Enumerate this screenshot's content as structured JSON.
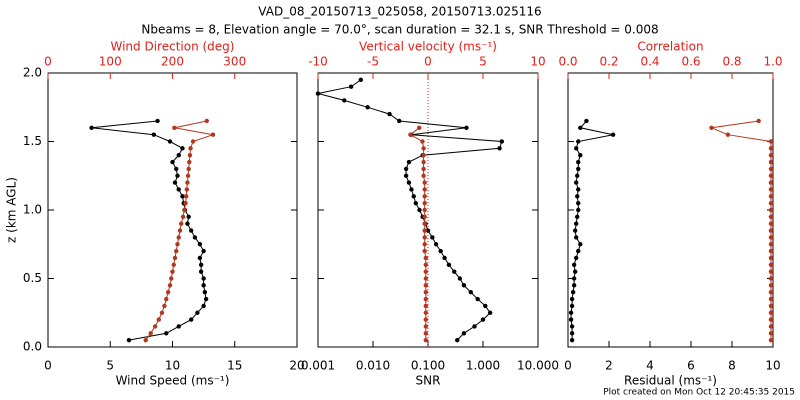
{
  "header": {
    "title": "VAD_08_20150713_025058, 20150713.025116",
    "subtitle": "Nbeams = 8, Elevation angle = 70.0°, scan duration = 32.1 s, SNR Threshold = 0.008",
    "footer": "Plot created on Mon Oct 12 20:45:35 2015"
  },
  "chart_data": [
    {
      "type": "line",
      "ylabel": "z (km AGL)",
      "ytick_labels": true,
      "ylim": [
        0,
        2
      ],
      "yticks": [
        {
          "value": 0,
          "label": "0.0"
        },
        {
          "value": 0.5,
          "label": "0.5"
        },
        {
          "value": 1,
          "label": "1.0"
        },
        {
          "value": 1.5,
          "label": "1.5"
        },
        {
          "value": 2,
          "label": "2.0"
        }
      ],
      "y": [
        0.05,
        0.1,
        0.15,
        0.2,
        0.25,
        0.3,
        0.35,
        0.4,
        0.45,
        0.5,
        0.55,
        0.6,
        0.65,
        0.7,
        0.75,
        0.8,
        0.85,
        0.9,
        0.95,
        1.0,
        1.05,
        1.1,
        1.15,
        1.2,
        1.25,
        1.3,
        1.35,
        1.4,
        1.45,
        1.5,
        1.55,
        1.6,
        1.65,
        1.7,
        1.75,
        1.8,
        1.85,
        1.9,
        1.95
      ],
      "xlabel": "Wind Speed (ms⁻¹)",
      "xlim": [
        0,
        20
      ],
      "xticks": [
        0,
        5,
        10,
        15,
        20
      ],
      "x2label": "Wind Direction (deg)",
      "x2lim": [
        0,
        400
      ],
      "x2ticks": [
        0,
        100,
        200,
        300
      ],
      "series": [
        {
          "name": "Wind Speed",
          "color": "#000000",
          "axis": "x",
          "values": [
            6.5,
            9.5,
            10.5,
            11.5,
            12,
            12.5,
            12.7,
            12.6,
            12.5,
            12.5,
            12.3,
            12.3,
            12.2,
            12.5,
            12.2,
            11.8,
            11.5,
            11.2,
            11.3,
            11.0,
            10.9,
            10.8,
            10.5,
            10.2,
            10.4,
            10.3,
            10.0,
            10.5,
            10.8,
            9.8,
            8.5,
            3.5,
            8.8,
            null,
            null,
            null,
            null,
            null,
            null
          ]
        },
        {
          "name": "Wind Direction",
          "color": "#b5361e",
          "axis": "x2",
          "values": [
            157,
            165,
            172,
            178,
            183,
            187,
            190,
            193,
            196,
            198,
            200,
            202,
            204,
            206,
            208,
            210,
            212,
            214,
            217,
            219,
            221,
            222,
            223,
            224,
            225,
            226,
            227,
            228,
            229,
            233,
            265,
            203,
            255,
            null,
            null,
            null,
            null,
            null,
            null
          ]
        }
      ]
    },
    {
      "type": "line",
      "ytick_labels": false,
      "ylim": [
        0,
        2
      ],
      "yticks": [
        0,
        0.5,
        1,
        1.5,
        2
      ],
      "y": [
        0.05,
        0.1,
        0.15,
        0.2,
        0.25,
        0.3,
        0.35,
        0.4,
        0.45,
        0.5,
        0.55,
        0.6,
        0.65,
        0.7,
        0.75,
        0.8,
        0.85,
        0.9,
        0.95,
        1.0,
        1.05,
        1.1,
        1.15,
        1.2,
        1.25,
        1.3,
        1.35,
        1.4,
        1.45,
        1.5,
        1.55,
        1.6,
        1.65,
        1.7,
        1.75,
        1.8,
        1.85,
        1.9,
        1.95
      ],
      "xlabel": "SNR",
      "xscale": "log",
      "xlim": [
        0.001,
        10
      ],
      "xticks": [
        {
          "value": 0.001,
          "label": "0.001"
        },
        {
          "value": 0.01,
          "label": "0.010"
        },
        {
          "value": 0.1,
          "label": "0.100"
        },
        {
          "value": 1,
          "label": "1.000"
        },
        {
          "value": 10,
          "label": "10.000"
        }
      ],
      "x2label": "Vertical velocity (ms⁻¹)",
      "x2lim": [
        -10,
        10
      ],
      "x2ticks": [
        -10,
        -5,
        0,
        5,
        10
      ],
      "x2_refline": 0,
      "series": [
        {
          "name": "SNR",
          "color": "#000000",
          "axis": "x",
          "values": [
            0.34,
            0.45,
            0.7,
            1.0,
            1.35,
            1.1,
            0.8,
            0.6,
            0.45,
            0.38,
            0.3,
            0.24,
            0.2,
            0.17,
            0.14,
            0.12,
            0.1,
            0.09,
            0.08,
            0.07,
            0.06,
            0.055,
            0.05,
            0.045,
            0.04,
            0.04,
            0.045,
            0.08,
            2.0,
            2.2,
            0.05,
            0.5,
            0.03,
            0.02,
            0.008,
            0.003,
            0.001,
            0.004,
            0.006
          ]
        },
        {
          "name": "Vertical velocity",
          "color": "#b5361e",
          "axis": "x2",
          "values": [
            -0.2,
            -0.2,
            -0.2,
            -0.2,
            -0.2,
            -0.2,
            -0.2,
            -0.2,
            -0.2,
            -0.2,
            -0.2,
            -0.2,
            -0.2,
            -0.3,
            -0.3,
            -0.3,
            -0.3,
            -0.3,
            -0.3,
            -0.3,
            -0.3,
            -0.3,
            -0.3,
            -0.3,
            -0.4,
            -0.4,
            -0.4,
            -0.4,
            -0.4,
            -0.5,
            -1.6,
            -0.8,
            null,
            null,
            null,
            null,
            null,
            null,
            null
          ]
        }
      ]
    },
    {
      "type": "line",
      "ytick_labels": false,
      "ylim": [
        0,
        2
      ],
      "yticks": [
        0,
        0.5,
        1,
        1.5,
        2
      ],
      "y": [
        0.05,
        0.1,
        0.15,
        0.2,
        0.25,
        0.3,
        0.35,
        0.4,
        0.45,
        0.5,
        0.55,
        0.6,
        0.65,
        0.7,
        0.75,
        0.8,
        0.85,
        0.9,
        0.95,
        1.0,
        1.05,
        1.1,
        1.15,
        1.2,
        1.25,
        1.3,
        1.35,
        1.4,
        1.45,
        1.5,
        1.55,
        1.6,
        1.65,
        1.7,
        1.75,
        1.8,
        1.85,
        1.9,
        1.95
      ],
      "xlabel": "Residual (ms⁻¹)",
      "xlim": [
        0,
        10
      ],
      "xticks": [
        0,
        2,
        4,
        6,
        8,
        10
      ],
      "x2label": "Correlation",
      "x2lim": [
        0,
        1
      ],
      "x2ticks": [
        {
          "value": 0,
          "label": "0.0"
        },
        {
          "value": 0.2,
          "label": "0.2"
        },
        {
          "value": 0.4,
          "label": "0.4"
        },
        {
          "value": 0.6,
          "label": "0.6"
        },
        {
          "value": 0.8,
          "label": "0.8"
        },
        {
          "value": 1,
          "label": "1.0"
        }
      ],
      "series": [
        {
          "name": "Residual",
          "color": "#000000",
          "axis": "x",
          "values": [
            0.2,
            0.2,
            0.2,
            0.15,
            0.15,
            0.2,
            0.2,
            0.25,
            0.3,
            0.3,
            0.35,
            0.3,
            0.4,
            0.5,
            0.6,
            0.4,
            0.35,
            0.4,
            0.45,
            0.5,
            0.5,
            0.45,
            0.5,
            0.4,
            0.45,
            0.5,
            0.5,
            0.6,
            0.4,
            0.5,
            2.2,
            0.6,
            0.9,
            null,
            null,
            null,
            null,
            null,
            null
          ]
        },
        {
          "name": "Correlation",
          "color": "#b5361e",
          "axis": "x2",
          "values": [
            0.99,
            0.99,
            0.99,
            0.99,
            0.99,
            0.99,
            0.99,
            0.99,
            0.99,
            0.99,
            0.99,
            0.99,
            0.99,
            0.99,
            0.99,
            0.99,
            0.99,
            0.99,
            0.99,
            0.99,
            0.99,
            0.99,
            0.99,
            0.99,
            0.99,
            0.99,
            0.99,
            0.99,
            0.99,
            0.99,
            0.78,
            0.7,
            0.93,
            null,
            null,
            null,
            null,
            null,
            null
          ]
        }
      ]
    }
  ]
}
